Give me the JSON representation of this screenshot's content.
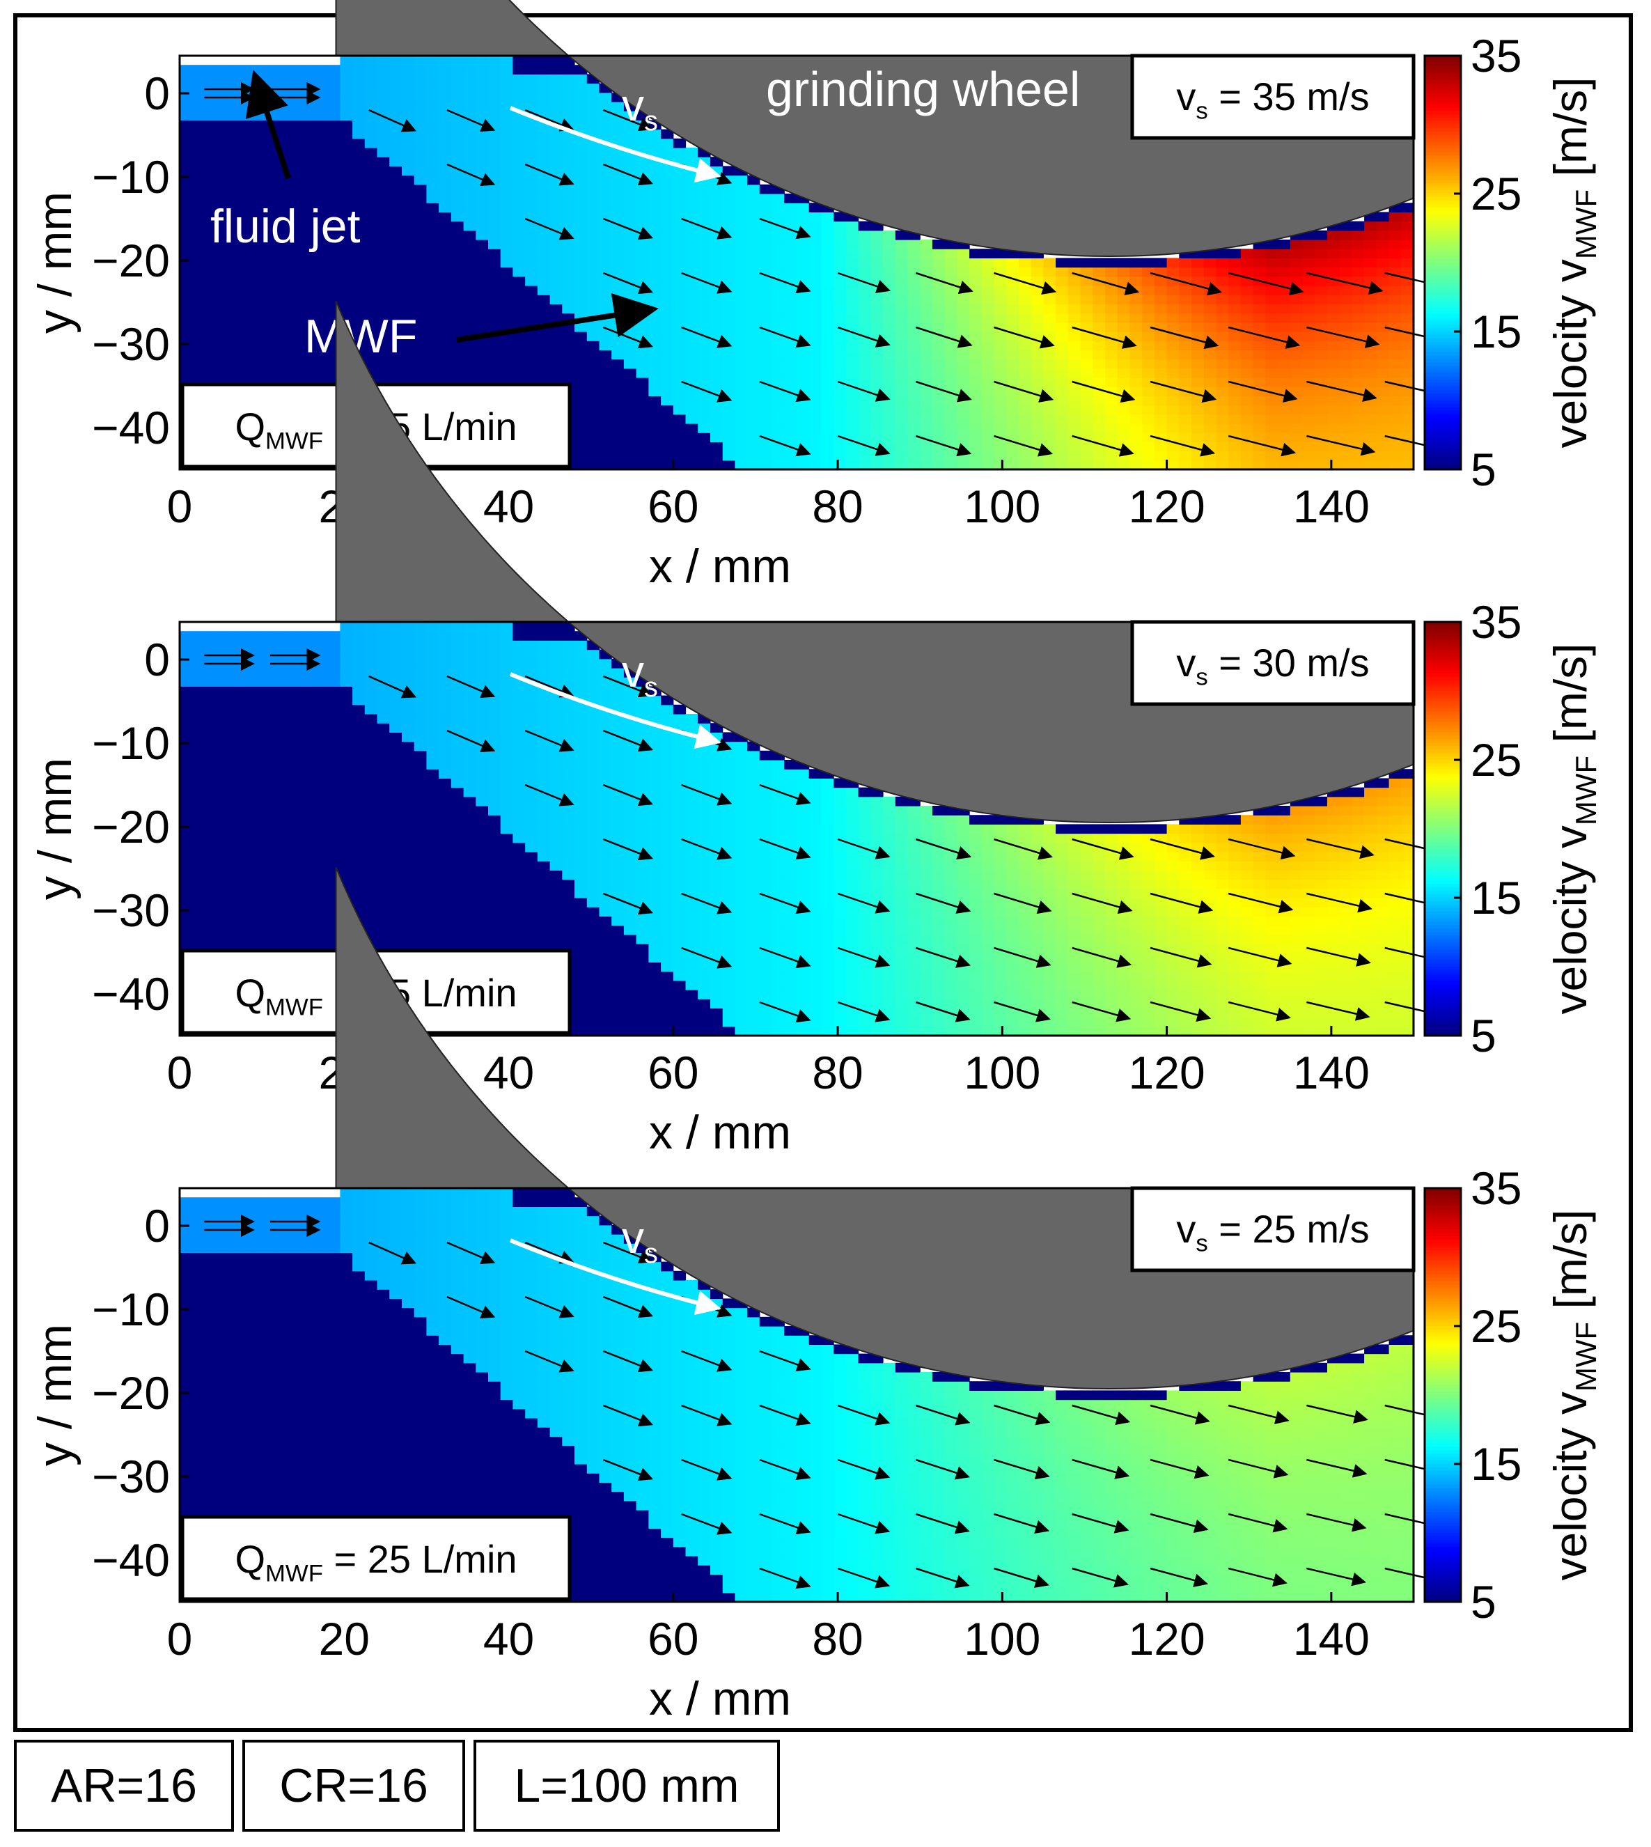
{
  "colorbar": {
    "label": "velocity v",
    "label_sub": "MWF",
    "label_unit": " [m/s]",
    "min": 5,
    "max": 35,
    "ticks": [
      "35",
      "25",
      "15",
      "5"
    ],
    "colormap": [
      "#00007f",
      "#0000ff",
      "#007fff",
      "#00ffff",
      "#7fff7f",
      "#ffff00",
      "#ff7f00",
      "#ff0000",
      "#7f0000"
    ]
  },
  "colors": {
    "wheel": "#666666",
    "substrate": "#00007f",
    "axis": "#000000",
    "arrow": "#000000"
  },
  "chart_data": [
    {
      "type": "heatmap",
      "title": "",
      "xlabel": "x / mm",
      "ylabel": "y / mm",
      "xlim": [
        0,
        150
      ],
      "ylim": [
        -45,
        4.5
      ],
      "xticks": [
        "0",
        "20",
        "40",
        "60",
        "80",
        "100",
        "120",
        "140"
      ],
      "yticks": [
        "0",
        "−10",
        "−20",
        "−30",
        "−40"
      ],
      "wheel_speed_label": {
        "main": "v",
        "sub": "s",
        "rest": " = 35 m/s"
      },
      "flow_label": {
        "main": "Q",
        "sub": "MWF",
        "rest": " = 25 L/min"
      },
      "vs_label": {
        "main": "v",
        "sub": "s"
      },
      "annotations": [
        "grinding wheel",
        "fluid jet",
        "MWF"
      ],
      "wheel_speed": 35,
      "flow_rate": 25,
      "jet_velocity": 13,
      "peak_velocity": 34,
      "wheel_bottom_y": -19.5
    },
    {
      "type": "heatmap",
      "title": "",
      "xlabel": "x / mm",
      "ylabel": "y / mm",
      "xlim": [
        0,
        150
      ],
      "ylim": [
        -45,
        4.5
      ],
      "xticks": [
        "0",
        "20",
        "40",
        "60",
        "80",
        "100",
        "120",
        "140"
      ],
      "yticks": [
        "0",
        "−10",
        "−20",
        "−30",
        "−40"
      ],
      "wheel_speed_label": {
        "main": "v",
        "sub": "s",
        "rest": " = 30 m/s"
      },
      "flow_label": {
        "main": "Q",
        "sub": "MWF",
        "rest": " = 25 L/min"
      },
      "vs_label": {
        "main": "v",
        "sub": "s"
      },
      "annotations": [],
      "wheel_speed": 30,
      "flow_rate": 25,
      "jet_velocity": 13,
      "peak_velocity": 27,
      "wheel_bottom_y": -19.5
    },
    {
      "type": "heatmap",
      "title": "",
      "xlabel": "x / mm",
      "ylabel": "y / mm",
      "xlim": [
        0,
        150
      ],
      "ylim": [
        -45,
        4.5
      ],
      "xticks": [
        "0",
        "20",
        "40",
        "60",
        "80",
        "100",
        "120",
        "140"
      ],
      "yticks": [
        "0",
        "−10",
        "−20",
        "−30",
        "−40"
      ],
      "wheel_speed_label": {
        "main": "v",
        "sub": "s",
        "rest": " = 25 m/s"
      },
      "flow_label": {
        "main": "Q",
        "sub": "MWF",
        "rest": " = 25 L/min"
      },
      "vs_label": {
        "main": "v",
        "sub": "s"
      },
      "annotations": [],
      "wheel_speed": 25,
      "flow_rate": 25,
      "jet_velocity": 13,
      "peak_velocity": 22,
      "wheel_bottom_y": -19.5
    }
  ],
  "footer": [
    "AR=16",
    "CR=16",
    "L=100 mm"
  ]
}
